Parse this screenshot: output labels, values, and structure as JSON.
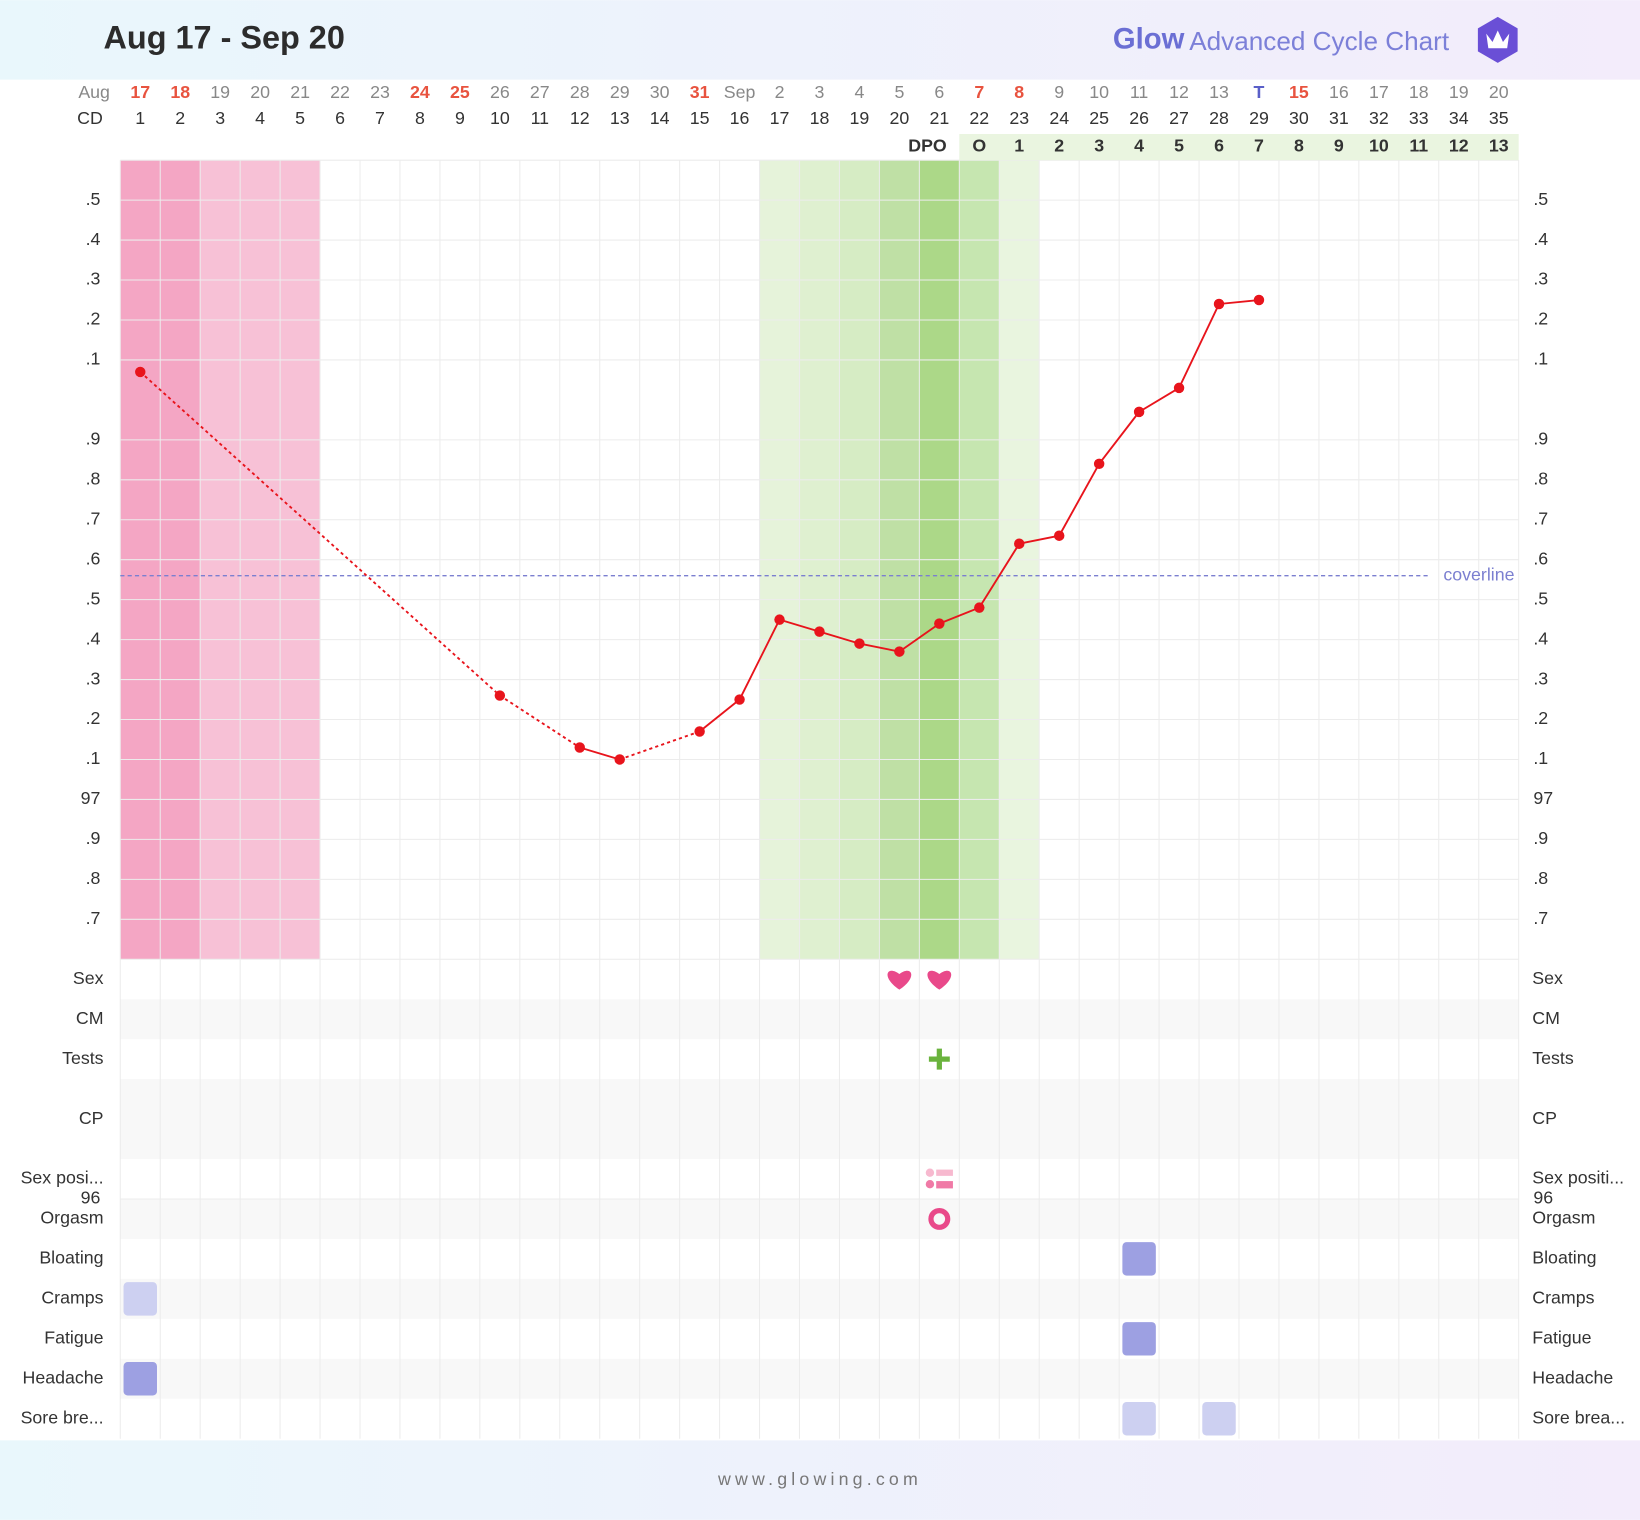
{
  "chart_data": {
    "type": "line",
    "title": "Aug 17 - Sep 20",
    "brand": "Glow",
    "subtitle": "Advanced Cycle Chart",
    "footer": "www.glowing.com",
    "month_label": "Aug",
    "cd_label": "CD",
    "dpo_label": "DPO",
    "categories": [
      "17",
      "18",
      "19",
      "20",
      "21",
      "22",
      "23",
      "24",
      "25",
      "26",
      "27",
      "28",
      "29",
      "30",
      "31",
      "Sep",
      "2",
      "3",
      "4",
      "5",
      "6",
      "7",
      "8",
      "9",
      "10",
      "11",
      "12",
      "13",
      "T",
      "15",
      "16",
      "17",
      "18",
      "19",
      "20"
    ],
    "date_colors": [
      "#e8533f",
      "#e8533f",
      null,
      null,
      null,
      null,
      null,
      "#e8533f",
      "#e8533f",
      null,
      null,
      null,
      null,
      null,
      "#e8533f",
      null,
      null,
      null,
      null,
      null,
      null,
      "#e8533f",
      "#e8533f",
      null,
      null,
      null,
      null,
      null,
      "#5a5fc8",
      "#e8533f",
      null,
      null,
      null,
      null,
      null
    ],
    "cycle_days": [
      1,
      2,
      3,
      4,
      5,
      6,
      7,
      8,
      9,
      10,
      11,
      12,
      13,
      14,
      15,
      16,
      17,
      18,
      19,
      20,
      21,
      22,
      23,
      24,
      25,
      26,
      27,
      28,
      29,
      30,
      31,
      32,
      33,
      34,
      35
    ],
    "dpo": [
      null,
      null,
      null,
      null,
      null,
      null,
      null,
      null,
      null,
      null,
      null,
      null,
      null,
      null,
      null,
      null,
      null,
      null,
      null,
      null,
      null,
      "O",
      1,
      2,
      3,
      4,
      5,
      6,
      7,
      8,
      9,
      10,
      11,
      12,
      13
    ],
    "series": [
      {
        "color": "#e8141c",
        "values": [
          98.07,
          null,
          null,
          null,
          null,
          null,
          null,
          null,
          null,
          97.26,
          null,
          97.13,
          97.1,
          null,
          97.17,
          97.25,
          97.45,
          97.42,
          97.39,
          97.37,
          97.44,
          97.48,
          97.64,
          97.66,
          97.84,
          97.97,
          98.03,
          98.24,
          98.25,
          null,
          null,
          null,
          null,
          null,
          null
        ]
      }
    ],
    "ylim": [
      96.6,
      98.6
    ],
    "yticks": [
      {
        "value": 98.5,
        "label": ".5"
      },
      {
        "value": 98.4,
        "label": ".4"
      },
      {
        "value": 98.3,
        "label": ".3"
      },
      {
        "value": 98.2,
        "label": ".2"
      },
      {
        "value": 98.1,
        "label": ".1"
      },
      97,
      {
        "value": 97.9,
        "label": ".9"
      },
      {
        "value": 97.8,
        "label": ".8"
      },
      {
        "value": 97.7,
        "label": ".7"
      },
      {
        "value": 97.6,
        "label": ".6"
      },
      {
        "value": 97.5,
        "label": ".5"
      },
      {
        "value": 97.4,
        "label": ".4"
      },
      {
        "value": 97.3,
        "label": ".3"
      },
      {
        "value": 97.2,
        "label": ".2"
      },
      {
        "value": 97.1,
        "label": ".1"
      },
      96,
      {
        "value": 96.9,
        "label": ".9"
      },
      {
        "value": 96.8,
        "label": ".8"
      },
      {
        "value": 96.7,
        "label": ".7"
      }
    ],
    "grid": true,
    "coverline": {
      "value": 97.56,
      "label": "coverline",
      "color": "#7b7fd0"
    },
    "column_shades": [
      "#f4a6c4",
      "#f4a6c4",
      "#f7c1d6",
      "#f7c1d6",
      "#f7c1d6",
      null,
      null,
      null,
      null,
      null,
      null,
      null,
      null,
      null,
      null,
      null,
      "#e6f3da",
      "#dff0d0",
      "#d6ecc4",
      "#bfe0a5",
      "#acd888",
      "#c6e6b0",
      "#e9f5df",
      null,
      null,
      null,
      null,
      null,
      null,
      null,
      null,
      null,
      null,
      null,
      null
    ],
    "rows": [
      {
        "label": "Sex",
        "right_label": "Sex",
        "icon": "heart",
        "color": "#e9498a",
        "days": [
          20,
          21
        ]
      },
      {
        "label": "CM",
        "right_label": "CM",
        "days": []
      },
      {
        "label": "Tests",
        "right_label": "Tests",
        "icon": "plus",
        "color": "#6ab33d",
        "days": [
          21
        ]
      },
      {
        "label": "CP",
        "right_label": "CP",
        "days": []
      },
      {
        "label": "Sex posi...",
        "right_label": "Sex positi...",
        "icon": "list",
        "color": "#f07aa6",
        "days": [
          21
        ]
      },
      {
        "label": "Orgasm",
        "right_label": "Orgasm",
        "icon": "ring",
        "color": "#e9498a",
        "days": [
          21
        ]
      },
      {
        "label": "Bloating",
        "right_label": "Bloating",
        "icon": "square",
        "days": [
          26
        ],
        "colors": [
          "#9da0e2"
        ]
      },
      {
        "label": "Cramps",
        "right_label": "Cramps",
        "icon": "square",
        "days": [
          1
        ],
        "colors": [
          "#cdd0f1"
        ]
      },
      {
        "label": "Fatigue",
        "right_label": "Fatigue",
        "icon": "square",
        "days": [
          26
        ],
        "colors": [
          "#9da0e2"
        ]
      },
      {
        "label": "Headache",
        "right_label": "Headache",
        "icon": "square",
        "days": [
          1
        ],
        "colors": [
          "#9da0e2"
        ]
      },
      {
        "label": "Sore bre...",
        "right_label": "Sore brea...",
        "icon": "square",
        "days": [
          26,
          28
        ],
        "colors": [
          "#cdd0f1",
          "#cdd0f1"
        ]
      }
    ]
  }
}
